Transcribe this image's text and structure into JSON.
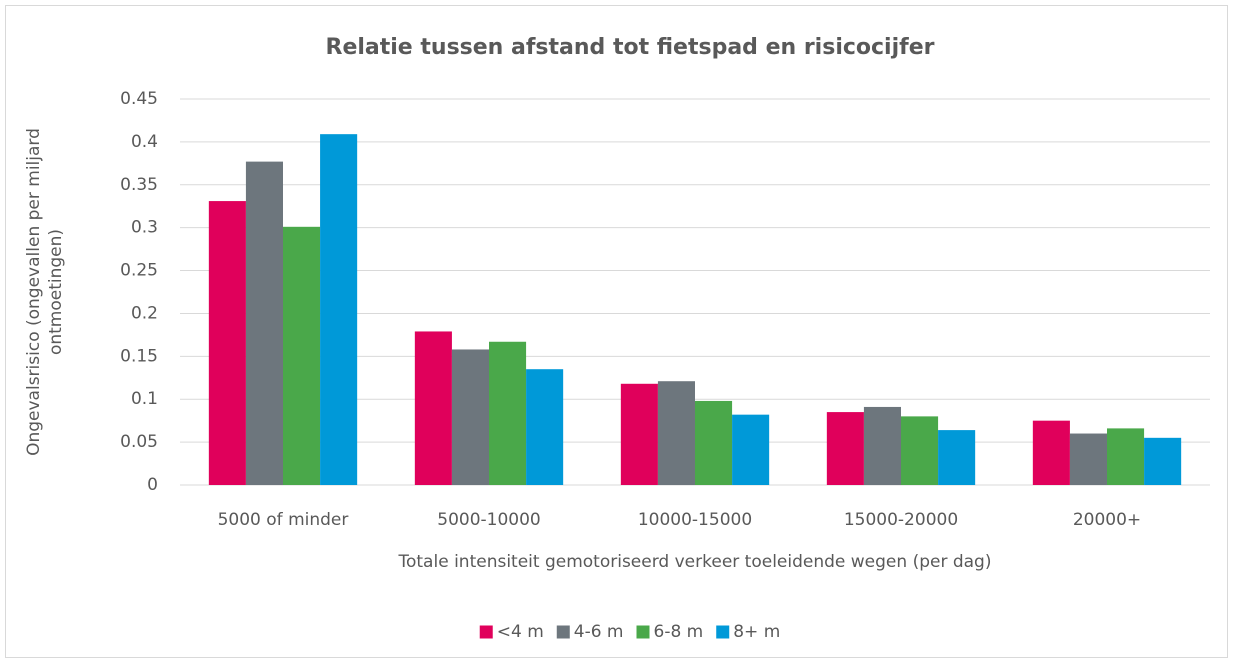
{
  "chart_data": {
    "type": "bar",
    "title": "Relatie tussen afstand tot fietspad en risicocijfer",
    "xlabel": "Totale intensiteit gemotoriseerd verkeer toeleidende wegen (per dag)",
    "ylabel": [
      "Ongevalsrisico (ongevallen per miljard",
      "ontmoetingen)"
    ],
    "categories": [
      "5000 of minder",
      "5000-10000",
      "10000-15000",
      "15000-20000",
      "20000+"
    ],
    "series": [
      {
        "name": "<4 m",
        "color": "#e0005b",
        "values": [
          0.331,
          0.179,
          0.118,
          0.085,
          0.075
        ]
      },
      {
        "name": "4-6 m",
        "color": "#6d767d",
        "values": [
          0.377,
          0.158,
          0.121,
          0.091,
          0.06
        ]
      },
      {
        "name": "6-8 m",
        "color": "#4aa84a",
        "values": [
          0.301,
          0.167,
          0.098,
          0.08,
          0.066
        ]
      },
      {
        "name": "8+ m",
        "color": "#0099d8",
        "values": [
          0.409,
          0.135,
          0.082,
          0.064,
          0.055
        ]
      }
    ],
    "ylim": [
      0,
      0.45
    ],
    "yticks": [
      0,
      0.05,
      0.1,
      0.15,
      0.2,
      0.25,
      0.3,
      0.35,
      0.4,
      0.45
    ],
    "grid": true,
    "legend": "bottom"
  }
}
